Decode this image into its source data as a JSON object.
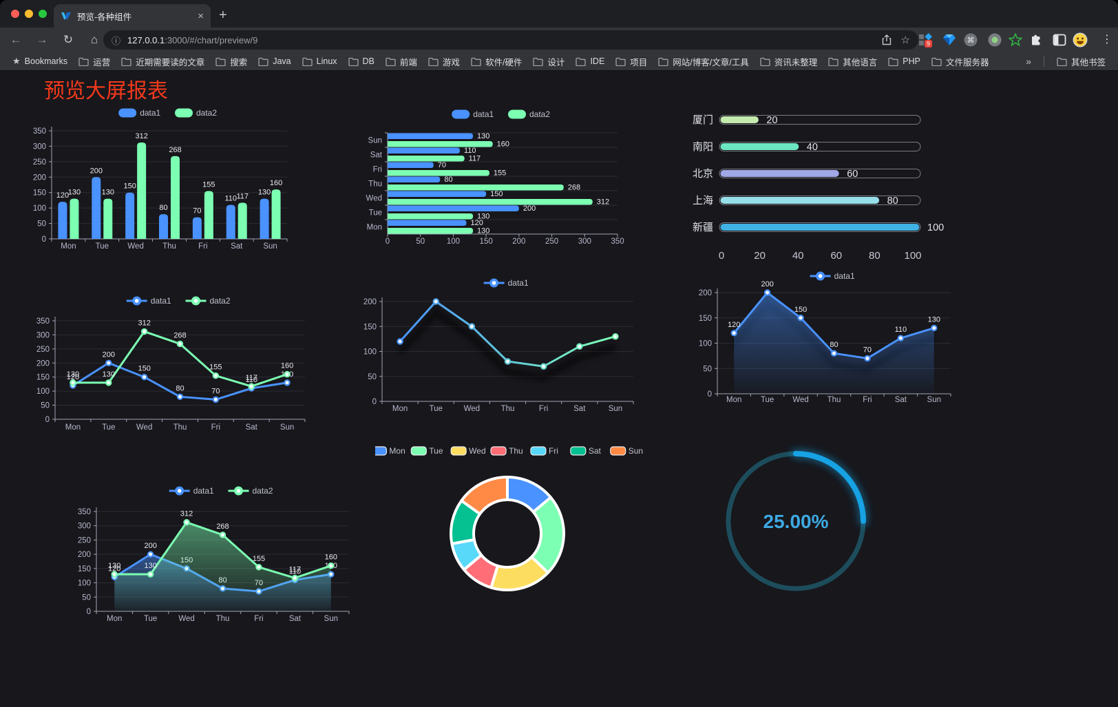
{
  "browser": {
    "tab": {
      "title": "预览-各种组件"
    },
    "close_glyph": "×",
    "new_tab_glyph": "+",
    "nav": {
      "back": "←",
      "forward": "→",
      "reload": "↻",
      "home": "⌂"
    },
    "address": {
      "info_glyph": "ⓘ",
      "host": "127.0.0.1",
      "path": ":3000/#/chart/preview/9",
      "bookmark_star": "☆"
    },
    "extension_badge": "9",
    "menu_glyph": "⋮",
    "bookmarks_bar": {
      "items": [
        {
          "label": "Bookmarks",
          "icon": "star"
        },
        {
          "label": "运营",
          "icon": "folder"
        },
        {
          "label": "近期需要读的文章",
          "icon": "folder"
        },
        {
          "label": "搜索",
          "icon": "folder"
        },
        {
          "label": "Java",
          "icon": "folder"
        },
        {
          "label": "Linux",
          "icon": "folder"
        },
        {
          "label": "DB",
          "icon": "folder"
        },
        {
          "label": "前端",
          "icon": "folder"
        },
        {
          "label": "游戏",
          "icon": "folder"
        },
        {
          "label": "软件/硬件",
          "icon": "folder"
        },
        {
          "label": "设计",
          "icon": "folder"
        },
        {
          "label": "IDE",
          "icon": "folder"
        },
        {
          "label": "项目",
          "icon": "folder"
        },
        {
          "label": "网站/博客/文章/工具",
          "icon": "folder"
        },
        {
          "label": "资讯未整理",
          "icon": "folder"
        },
        {
          "label": "其他语言",
          "icon": "folder"
        },
        {
          "label": "PHP",
          "icon": "folder"
        },
        {
          "label": "文件服务器",
          "icon": "folder"
        }
      ],
      "overflow_glyph": "»",
      "other_bookmarks": "其他书签"
    }
  },
  "page": {
    "title": "预览大屏报表",
    "title_color": "#f2391b",
    "background": "#17171c"
  },
  "chart_data": [
    {
      "id": "bar-vertical",
      "type": "bar",
      "categories": [
        "Mon",
        "Tue",
        "Wed",
        "Thu",
        "Fri",
        "Sat",
        "Sun"
      ],
      "series": [
        {
          "name": "data1",
          "color": "#4992ff",
          "values": [
            120,
            200,
            150,
            80,
            70,
            110,
            130
          ]
        },
        {
          "name": "data2",
          "color": "#7cffb2",
          "values": [
            130,
            130,
            312,
            268,
            155,
            117,
            160
          ]
        }
      ],
      "ylim": [
        0,
        350
      ],
      "yticks": [
        0,
        50,
        100,
        150,
        200,
        250,
        300,
        350
      ],
      "legend_position": "top",
      "grid": true,
      "data_labels": true
    },
    {
      "id": "bar-horizontal",
      "type": "bar-horizontal",
      "categories_top_to_bottom": [
        "Sun",
        "Sat",
        "Fri",
        "Thu",
        "Wed",
        "Tue",
        "Mon"
      ],
      "series": [
        {
          "name": "data1",
          "color": "#4992ff",
          "values": [
            130,
            110,
            70,
            80,
            150,
            200,
            120
          ]
        },
        {
          "name": "data2",
          "color": "#7cffb2",
          "values": [
            160,
            117,
            155,
            268,
            312,
            130,
            130
          ]
        }
      ],
      "xlim": [
        0,
        350
      ],
      "xticks": [
        0,
        50,
        100,
        150,
        200,
        250,
        300,
        350
      ],
      "legend_position": "top",
      "data_labels": true
    },
    {
      "id": "progress",
      "type": "progress-bar",
      "items": [
        {
          "label": "厦门",
          "value": 20,
          "color": "#c4ebad"
        },
        {
          "label": "南阳",
          "value": 40,
          "color": "#6be6c1"
        },
        {
          "label": "北京",
          "value": 60,
          "color": "#a0a7e6"
        },
        {
          "label": "上海",
          "value": 80,
          "color": "#96dee8"
        },
        {
          "label": "新疆",
          "value": 100,
          "color": "#3fb1e3"
        }
      ],
      "xlim": [
        0,
        100
      ],
      "xticks": [
        0,
        20,
        40,
        60,
        80,
        100
      ]
    },
    {
      "id": "line-two",
      "type": "line",
      "categories": [
        "Mon",
        "Tue",
        "Wed",
        "Thu",
        "Fri",
        "Sat",
        "Sun"
      ],
      "series": [
        {
          "name": "data1",
          "color": "#4992ff",
          "values": [
            120,
            200,
            150,
            80,
            70,
            110,
            130
          ]
        },
        {
          "name": "data2",
          "color": "#7cffb2",
          "values": [
            130,
            130,
            312,
            268,
            155,
            117,
            160
          ]
        }
      ],
      "ylim": [
        0,
        350
      ],
      "yticks": [
        0,
        50,
        100,
        150,
        200,
        250,
        300,
        350
      ],
      "legend_position": "top",
      "data_labels": true
    },
    {
      "id": "line-gradient",
      "type": "line-gradient",
      "categories": [
        "Mon",
        "Tue",
        "Wed",
        "Thu",
        "Fri",
        "Sat",
        "Sun"
      ],
      "series": [
        {
          "name": "data1",
          "gradient": [
            "#4992ff",
            "#7cffb2"
          ],
          "values": [
            120,
            200,
            150,
            80,
            70,
            110,
            130
          ]
        }
      ],
      "ylim": [
        0,
        200
      ],
      "yticks": [
        0,
        50,
        100,
        150,
        200
      ],
      "legend_position": "top",
      "data_labels": false,
      "shadow": true
    },
    {
      "id": "line-area",
      "type": "line-area",
      "categories": [
        "Mon",
        "Tue",
        "Wed",
        "Thu",
        "Fri",
        "Sat",
        "Sun"
      ],
      "series": [
        {
          "name": "data1",
          "color": "#4992ff",
          "values": [
            120,
            200,
            150,
            80,
            70,
            110,
            130
          ]
        }
      ],
      "ylim": [
        0,
        200
      ],
      "yticks": [
        0,
        50,
        100,
        150,
        200
      ],
      "legend_position": "top",
      "data_labels": true,
      "shadow": true
    },
    {
      "id": "area-two",
      "type": "line",
      "categories": [
        "Mon",
        "Tue",
        "Wed",
        "Thu",
        "Fri",
        "Sat",
        "Sun"
      ],
      "series": [
        {
          "name": "data1",
          "color": "#4992ff",
          "values": [
            120,
            200,
            150,
            80,
            70,
            110,
            130
          ],
          "area": true
        },
        {
          "name": "data2",
          "color": "#7cffb2",
          "values": [
            130,
            130,
            312,
            268,
            155,
            117,
            160
          ],
          "area": true
        }
      ],
      "ylim": [
        0,
        350
      ],
      "yticks": [
        0,
        50,
        100,
        150,
        200,
        250,
        300,
        350
      ],
      "legend_position": "top",
      "data_labels": true
    },
    {
      "id": "donut",
      "type": "pie",
      "items": [
        {
          "label": "Mon",
          "value": 120,
          "color": "#4992ff"
        },
        {
          "label": "Tue",
          "value": 200,
          "color": "#7cffb2"
        },
        {
          "label": "Wed",
          "value": 150,
          "color": "#fddd60"
        },
        {
          "label": "Thu",
          "value": 80,
          "color": "#ff6e76"
        },
        {
          "label": "Fri",
          "value": 70,
          "color": "#58d9f9"
        },
        {
          "label": "Sat",
          "value": 110,
          "color": "#05c091"
        },
        {
          "label": "Sun",
          "value": 130,
          "color": "#ff8a45"
        }
      ],
      "inner_radius_ratio": 0.6,
      "legend_position": "top",
      "border_color": "#ffffff"
    },
    {
      "id": "gauge",
      "type": "gauge",
      "value": 25,
      "label": "25.00%",
      "color": "#17a2e4",
      "track_color": "#1d4d5c",
      "text_color": "#3ea9e2"
    }
  ]
}
